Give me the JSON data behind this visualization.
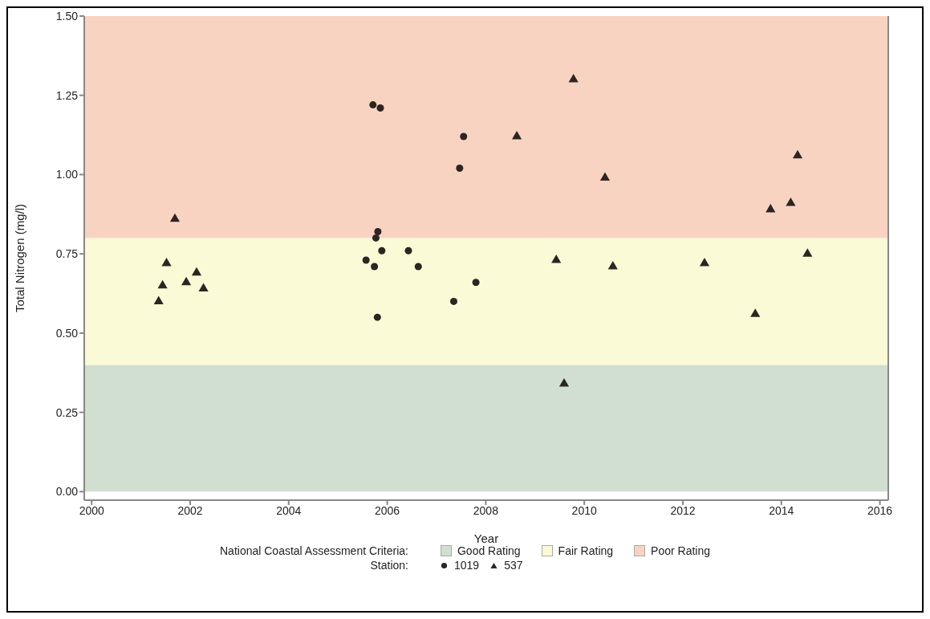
{
  "chart_data": {
    "type": "scatter",
    "xlabel": "Year",
    "ylabel": "Total Nitrogen (mg/l)",
    "xlim": [
      1999.85,
      2016.17
    ],
    "ylim": [
      -0.027,
      1.5
    ],
    "xticks": [
      2000,
      2002,
      2004,
      2006,
      2008,
      2010,
      2012,
      2014,
      2016
    ],
    "yticks": [
      {
        "value": 0,
        "label": "0.00"
      },
      {
        "value": 0.25,
        "label": "0.25"
      },
      {
        "value": 0.5,
        "label": "0.50"
      },
      {
        "value": 0.75,
        "label": "0.75"
      },
      {
        "value": 1,
        "label": "1.00"
      },
      {
        "value": 1.25,
        "label": "1.25"
      },
      {
        "value": 1.5,
        "label": "1.50"
      }
    ],
    "grid": false,
    "legend": "bottom",
    "legend_title": "Station:",
    "annotations": [
      "National Coastal Assessment Criteria:"
    ],
    "bands": [
      {
        "axis": "y",
        "from": 0,
        "to": 0.4,
        "label": "Good Rating",
        "color": "#d0dfd0"
      },
      {
        "axis": "y",
        "from": 0.4,
        "to": 0.8,
        "label": "Fair Rating",
        "color": "#fbfad6"
      },
      {
        "axis": "y",
        "from": 0.8,
        "to": 1.5,
        "label": "Poor Rating",
        "color": "#f9d3c2"
      }
    ],
    "series": [
      {
        "name": "1019",
        "color": "#2b2622",
        "marker": "circle",
        "x": [
          2005.81,
          2005.77,
          2005.89,
          2005.57,
          2005.74,
          2005.8,
          2007.55,
          2007.47,
          2006.43,
          2006.63,
          2007.8,
          2007.35,
          2005.71,
          2005.86
        ],
        "values": [
          0.82,
          0.8,
          0.76,
          0.73,
          0.71,
          0.55,
          1.12,
          1.02,
          0.76,
          0.71,
          0.66,
          0.6,
          1.22,
          1.21
        ]
      },
      {
        "name": "537",
        "color": "#2b2622",
        "marker": "triangle",
        "x": [
          2001.36,
          2001.44,
          2001.52,
          2001.69,
          2001.92,
          2002.13,
          2002.27,
          2008.63,
          2009.43,
          2009.59,
          2009.78,
          2010.42,
          2010.58,
          2012.44,
          2013.47,
          2013.78,
          2014.19,
          2014.33,
          2014.53
        ],
        "values": [
          0.6,
          0.65,
          0.72,
          0.86,
          0.66,
          0.69,
          0.64,
          1.12,
          0.73,
          0.34,
          1.3,
          0.99,
          0.71,
          0.72,
          0.56,
          0.89,
          0.91,
          1.06,
          0.75
        ]
      }
    ]
  }
}
